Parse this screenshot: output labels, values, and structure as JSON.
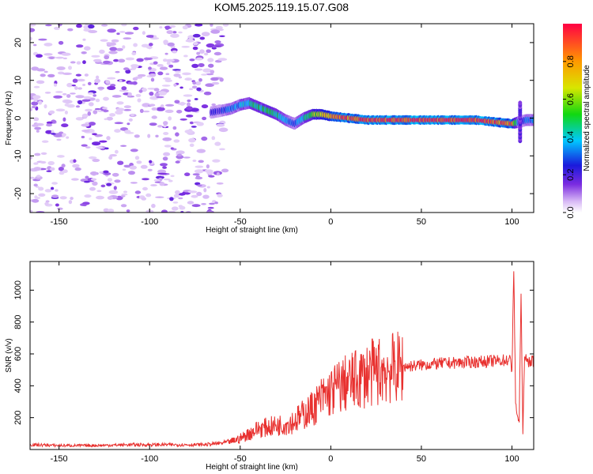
{
  "title": "KOM5.2025.119.15.07.G08",
  "chart_data": [
    {
      "type": "heatmap",
      "xlabel": "Height of straight line (km)",
      "ylabel": "Frequency (Hz)",
      "xlim": [
        -166,
        112
      ],
      "ylim": [
        -25,
        25
      ],
      "xticks": [
        -150,
        -100,
        -50,
        0,
        50,
        100
      ],
      "yticks": [
        -20,
        -10,
        0,
        10,
        20
      ],
      "colorbar": {
        "label": "Normalized spectral amplitude",
        "range": [
          0,
          1
        ],
        "ticks": [
          0.0,
          0.2,
          0.4,
          0.6,
          0.8
        ],
        "tick_labels": [
          "0.0",
          "0.2",
          "0.4",
          "0.6",
          "0.8"
        ]
      },
      "noise_region_x": [
        -166,
        -58
      ],
      "signal_track": {
        "x": [
          -66,
          -60,
          -55,
          -50,
          -45,
          -40,
          -35,
          -30,
          -25,
          -20,
          -15,
          -10,
          -5,
          0,
          10,
          20,
          30,
          40,
          50,
          60,
          70,
          80,
          90,
          100,
          104,
          108,
          112
        ],
        "frequency": [
          1.5,
          2,
          2.5,
          3.5,
          4,
          3,
          2,
          1,
          -0.5,
          -1.5,
          0,
          1,
          1,
          0.5,
          0,
          -0.5,
          -0.5,
          -0.5,
          -0.5,
          -0.5,
          -0.5,
          -0.5,
          -1,
          -1.5,
          -1,
          -0.5,
          -0.5
        ],
        "amplitude": [
          0.2,
          0.25,
          0.3,
          0.35,
          0.4,
          0.45,
          0.45,
          0.45,
          0.35,
          0.3,
          0.4,
          0.55,
          0.65,
          0.8,
          0.9,
          0.92,
          0.95,
          0.95,
          0.95,
          0.95,
          0.95,
          0.95,
          0.9,
          0.85,
          0.2,
          0.3,
          0.3
        ]
      }
    },
    {
      "type": "line",
      "xlabel": "Height of straight line (km)",
      "ylabel": "SNR (v/v)",
      "xlim": [
        -166,
        112
      ],
      "ylim": [
        0,
        1180
      ],
      "xticks": [
        -150,
        -100,
        -50,
        0,
        50,
        100
      ],
      "yticks": [
        200,
        400,
        600,
        800,
        1000
      ],
      "series": [
        {
          "color": "#e8312f",
          "x": [
            -166,
            -150,
            -130,
            -110,
            -90,
            -70,
            -60,
            -55,
            -50,
            -45,
            -40,
            -35,
            -30,
            -25,
            -20,
            -15,
            -10,
            -5,
            0,
            5,
            10,
            15,
            20,
            25,
            30,
            35,
            40,
            50,
            60,
            70,
            80,
            90,
            95,
            99,
            100,
            101,
            102,
            103,
            104,
            105,
            106,
            107,
            108,
            110,
            112
          ],
          "values": [
            30,
            25,
            25,
            30,
            30,
            30,
            40,
            50,
            70,
            100,
            130,
            140,
            150,
            160,
            180,
            220,
            260,
            320,
            360,
            400,
            420,
            440,
            470,
            490,
            500,
            510,
            520,
            530,
            540,
            545,
            550,
            555,
            560,
            560,
            500,
            1150,
            300,
            200,
            180,
            1000,
            90,
            620,
            540,
            560,
            550
          ]
        }
      ]
    }
  ]
}
